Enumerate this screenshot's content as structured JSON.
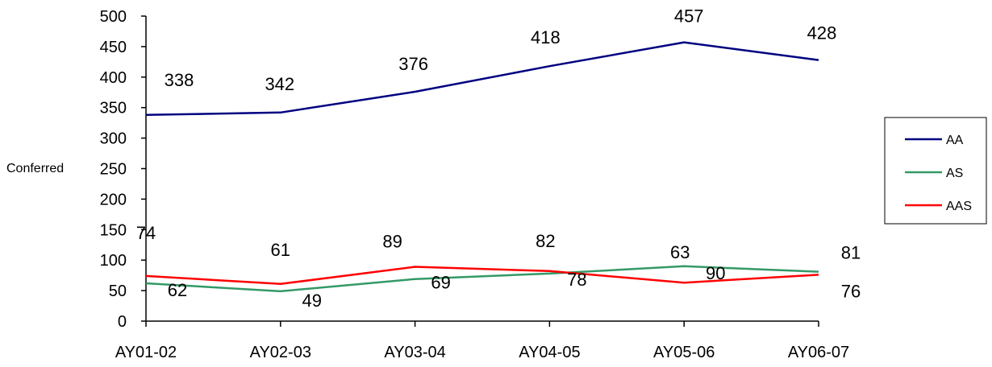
{
  "chart_data": {
    "type": "line",
    "categories": [
      "AY01-02",
      "AY02-03",
      "AY03-04",
      "AY04-05",
      "AY05-06",
      "AY06-07"
    ],
    "ylabel": "Conferred",
    "ylim": [
      0,
      500
    ],
    "yticks": [
      0,
      50,
      100,
      150,
      200,
      250,
      300,
      350,
      400,
      450,
      500
    ],
    "grid": false,
    "legend_position": "right",
    "series": [
      {
        "name": "AA",
        "color": "#000080",
        "values": [
          338,
          342,
          376,
          418,
          457,
          428
        ]
      },
      {
        "name": "AS",
        "color": "#339966",
        "values": [
          62,
          49,
          69,
          78,
          90,
          81
        ]
      },
      {
        "name": "AAS",
        "color": "#FF0000",
        "values": [
          74,
          61,
          89,
          82,
          63,
          76
        ]
      }
    ]
  }
}
